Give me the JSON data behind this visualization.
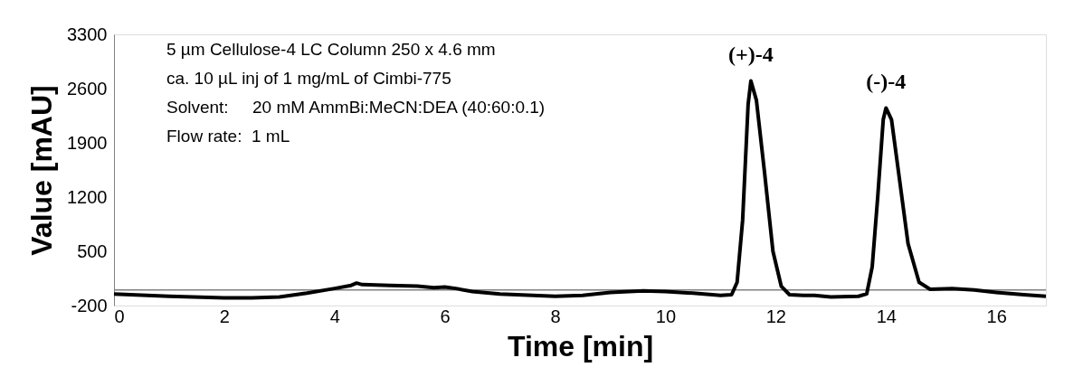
{
  "chart_data": {
    "type": "line",
    "xlabel": "Time [min]",
    "ylabel": "Value [mAU]",
    "xlim": [
      0,
      16.9
    ],
    "xticks": [
      0,
      2,
      4,
      6,
      8,
      10,
      12,
      14,
      16
    ],
    "ylim": [
      -200,
      3300
    ],
    "yticks": [
      -200,
      500,
      1200,
      1900,
      2600,
      3300
    ],
    "grid": false,
    "marker": "none",
    "line_style": "solid",
    "x": [
      0,
      1,
      2,
      2.5,
      3,
      3.5,
      4,
      4.3,
      4.4,
      4.5,
      5,
      5.5,
      5.8,
      6,
      6.2,
      6.5,
      7,
      8,
      8.5,
      9,
      9.6,
      10,
      10.5,
      11,
      11.2,
      11.3,
      11.4,
      11.5,
      11.55,
      11.65,
      11.8,
      11.95,
      12.1,
      12.25,
      12.5,
      12.7,
      13,
      13.5,
      13.65,
      13.75,
      13.85,
      13.95,
      14.0,
      14.1,
      14.25,
      14.4,
      14.6,
      14.8,
      15.2,
      15.6,
      16,
      16.5,
      16.9
    ],
    "series": [
      {
        "color": "#000000",
        "values": [
          -50,
          -80,
          -100,
          -100,
          -90,
          -40,
          20,
          60,
          90,
          70,
          60,
          50,
          30,
          40,
          20,
          -20,
          -50,
          -80,
          -70,
          -30,
          -10,
          -20,
          -40,
          -70,
          -60,
          100,
          900,
          2400,
          2700,
          2450,
          1500,
          500,
          50,
          -60,
          -70,
          -70,
          -90,
          -80,
          -50,
          300,
          1200,
          2200,
          2350,
          2200,
          1400,
          600,
          100,
          10,
          20,
          0,
          -30,
          -60,
          -80
        ]
      }
    ],
    "ref_lines": [
      {
        "axis": "y",
        "value": 0,
        "color": "#808080"
      }
    ],
    "annotations": [
      {
        "text": "(+)-4",
        "x": 11.55,
        "y": 2700
      },
      {
        "text": "(-)-4",
        "x": 14.0,
        "y": 2350
      },
      "5 µm Cellulose-4 LC Column 250 x 4.6 mm",
      "ca. 10 µL inj of 1 mg/mL of Cimbi-775",
      "Solvent:     20 mM AmmBi:MeCN:DEA (40:60:0.1)",
      "Flow rate:  1 mL"
    ]
  }
}
